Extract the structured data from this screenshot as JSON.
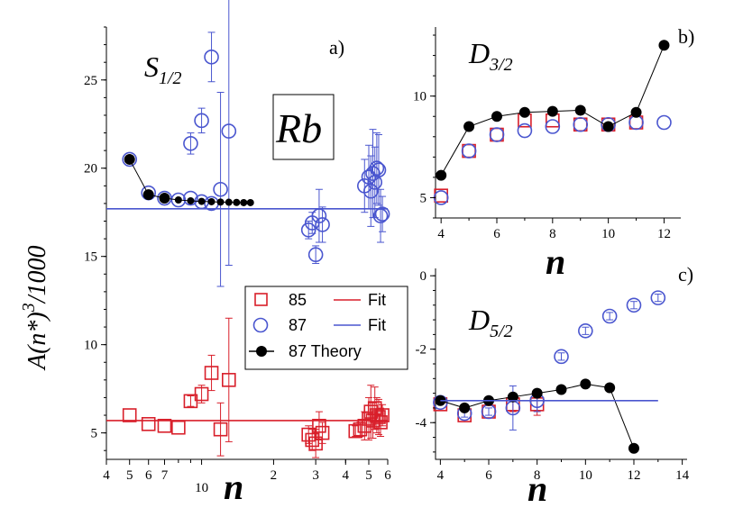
{
  "colors": {
    "rb85": "#d81f2a",
    "rb87": "#4a56cf",
    "theory": "#000000"
  },
  "panel_a": {
    "tag": "a)",
    "state_label": "S",
    "state_sub": "1/2",
    "element_label": "Rb",
    "y_axis_label_main": "A(n*)",
    "y_axis_label_sup": "3",
    "y_axis_label_tail": "/1000",
    "x_axis_label": "n",
    "x_tick_labels": [
      "4",
      "5",
      "6",
      "7",
      "10",
      "2",
      "3",
      "4",
      "5",
      "6"
    ],
    "y_tick_labels": [
      "5",
      "10",
      "15",
      "20",
      "25"
    ],
    "legend": [
      {
        "marker": "square",
        "label": "85",
        "line_label": "Fit"
      },
      {
        "marker": "circle",
        "label": "87",
        "line_label": "Fit"
      },
      {
        "marker": "filled-circle",
        "label": "87 Theory"
      }
    ]
  },
  "panel_b": {
    "tag": "b)",
    "state_label": "D",
    "state_sub": "3/2",
    "x_axis_label": "n",
    "x_tick_labels": [
      "4",
      "6",
      "8",
      "10",
      "12"
    ],
    "y_tick_labels": [
      "5",
      "10"
    ]
  },
  "panel_c": {
    "tag": "c)",
    "state_label": "D",
    "state_sub": "5/2",
    "x_axis_label": "n",
    "x_tick_labels": [
      "4",
      "6",
      "8",
      "10",
      "12",
      "14"
    ],
    "y_tick_labels": [
      "0",
      "-2",
      "-4"
    ]
  },
  "chart_data": [
    {
      "type": "scatter",
      "title": "S1/2",
      "xscale": "log",
      "xlim": [
        4,
        60
      ],
      "ylim": [
        3.5,
        28
      ],
      "xlabel": "n",
      "ylabel": "A(n*)^3/1000",
      "x_ticks": [
        4,
        5,
        6,
        7,
        10,
        20,
        30,
        40,
        50,
        60
      ],
      "y_ticks": [
        5,
        10,
        15,
        20,
        25
      ],
      "series": [
        {
          "name": "85",
          "marker": "open-square",
          "x": [
            5,
            6,
            7,
            8,
            9,
            10,
            11,
            12,
            13,
            28,
            29,
            30,
            31,
            32,
            44,
            46,
            48,
            50,
            51,
            52,
            53,
            54,
            55,
            56,
            57
          ],
          "y": [
            6.0,
            5.5,
            5.4,
            5.3,
            6.8,
            7.2,
            8.4,
            5.2,
            8.0,
            4.9,
            4.6,
            4.4,
            5.4,
            5.0,
            5.1,
            5.2,
            5.4,
            5.8,
            6.2,
            5.7,
            6.4,
            6.0,
            5.9,
            5.6,
            6.0
          ],
          "err": [
            0,
            0,
            0,
            0,
            0.3,
            0.5,
            1.0,
            1.5,
            3.5,
            0.5,
            0.6,
            0.8,
            0.8,
            0.6,
            0.3,
            0.4,
            0.8,
            1.2,
            1.5,
            1.0,
            1.2,
            1.0,
            1.0,
            0.8,
            0.6
          ]
        },
        {
          "name": "87",
          "marker": "open-circle",
          "x": [
            5,
            6,
            7,
            8,
            9,
            10,
            11,
            12,
            13,
            9,
            10,
            11,
            28,
            29,
            30,
            31,
            32,
            48,
            50,
            51,
            52,
            53,
            54,
            55,
            56,
            57
          ],
          "y": [
            20.5,
            18.6,
            18.3,
            18.2,
            18.3,
            18.1,
            18.0,
            18.8,
            22.1,
            21.4,
            22.7,
            26.3,
            16.5,
            16.9,
            15.1,
            17.3,
            16.8,
            19.0,
            19.5,
            18.7,
            19.7,
            19.2,
            20.0,
            19.9,
            17.3,
            17.4
          ],
          "err": [
            0,
            0,
            0,
            0,
            0,
            0,
            0,
            5.5,
            7.6,
            0.6,
            0.7,
            1.4,
            0.5,
            0.6,
            0.5,
            1.5,
            1.0,
            1.5,
            1.8,
            2.0,
            2.5,
            2.0,
            2.0,
            2.0,
            1.5,
            1.0
          ]
        },
        {
          "name": "87 Theory",
          "marker": "filled-circle",
          "line": true,
          "x": [
            5,
            6,
            7,
            8,
            9,
            10,
            11,
            12,
            13,
            14,
            15,
            16
          ],
          "y": [
            20.5,
            18.5,
            18.3,
            18.2,
            18.15,
            18.12,
            18.1,
            18.08,
            18.07,
            18.06,
            18.05,
            18.05
          ]
        },
        {
          "name": "85 Fit",
          "type": "hline",
          "y": 5.7
        },
        {
          "name": "87 Fit",
          "type": "hline",
          "y": 17.7
        }
      ]
    },
    {
      "type": "scatter",
      "title": "D3/2",
      "xlim": [
        3.8,
        12.6
      ],
      "ylim": [
        4.0,
        13.4
      ],
      "xlabel": "n",
      "x_ticks": [
        4,
        6,
        8,
        10,
        12
      ],
      "y_ticks": [
        5,
        10
      ],
      "series": [
        {
          "name": "85",
          "marker": "open-square",
          "x": [
            4,
            5,
            6,
            7,
            8,
            9,
            10,
            11
          ],
          "y": [
            5.1,
            7.3,
            8.1,
            8.8,
            8.8,
            8.6,
            8.6,
            8.7
          ]
        },
        {
          "name": "87",
          "marker": "open-circle",
          "x": [
            4,
            5,
            6,
            7,
            8,
            9,
            10,
            11,
            12
          ],
          "y": [
            5.0,
            7.3,
            8.1,
            8.3,
            8.5,
            8.6,
            8.6,
            8.7,
            8.7
          ]
        },
        {
          "name": "87 Theory",
          "marker": "filled-circle",
          "line": true,
          "x": [
            4,
            5,
            6,
            7,
            8,
            9,
            10,
            11,
            12
          ],
          "y": [
            6.1,
            8.5,
            9.0,
            9.2,
            9.25,
            9.3,
            8.5,
            9.2,
            12.5
          ]
        }
      ]
    },
    {
      "type": "scatter",
      "title": "D5/2",
      "xlim": [
        3.8,
        14.2
      ],
      "ylim": [
        -5.0,
        0.2
      ],
      "xlabel": "n",
      "x_ticks": [
        4,
        6,
        8,
        10,
        12,
        14
      ],
      "y_ticks": [
        0,
        -2,
        -4
      ],
      "series": [
        {
          "name": "85",
          "marker": "open-square",
          "x": [
            4,
            5,
            6,
            7,
            8
          ],
          "y": [
            -3.5,
            -3.8,
            -3.7,
            -3.5,
            -3.5
          ],
          "err": [
            0,
            0,
            0,
            0.2,
            0.3
          ]
        },
        {
          "name": "87",
          "marker": "open-circle",
          "x": [
            4,
            5,
            6,
            7,
            8,
            9,
            10,
            11,
            12,
            13
          ],
          "y": [
            -3.45,
            -3.75,
            -3.7,
            -3.6,
            -3.4,
            -2.2,
            -1.5,
            -1.1,
            -0.8,
            -0.6
          ],
          "err": [
            0,
            0.1,
            0.1,
            0.6,
            0.3,
            0.1,
            0.1,
            0.1,
            0.1,
            0.1
          ]
        },
        {
          "name": "87 Theory",
          "marker": "filled-circle",
          "line": true,
          "x": [
            4,
            5,
            6,
            7,
            8,
            9,
            10,
            11,
            12
          ],
          "y": [
            -3.4,
            -3.6,
            -3.4,
            -3.3,
            -3.2,
            -3.1,
            -2.95,
            -3.05,
            -4.7
          ]
        },
        {
          "name": "87 Fit",
          "type": "hline",
          "y": -3.4,
          "xrange": [
            4,
            13
          ]
        }
      ]
    }
  ]
}
